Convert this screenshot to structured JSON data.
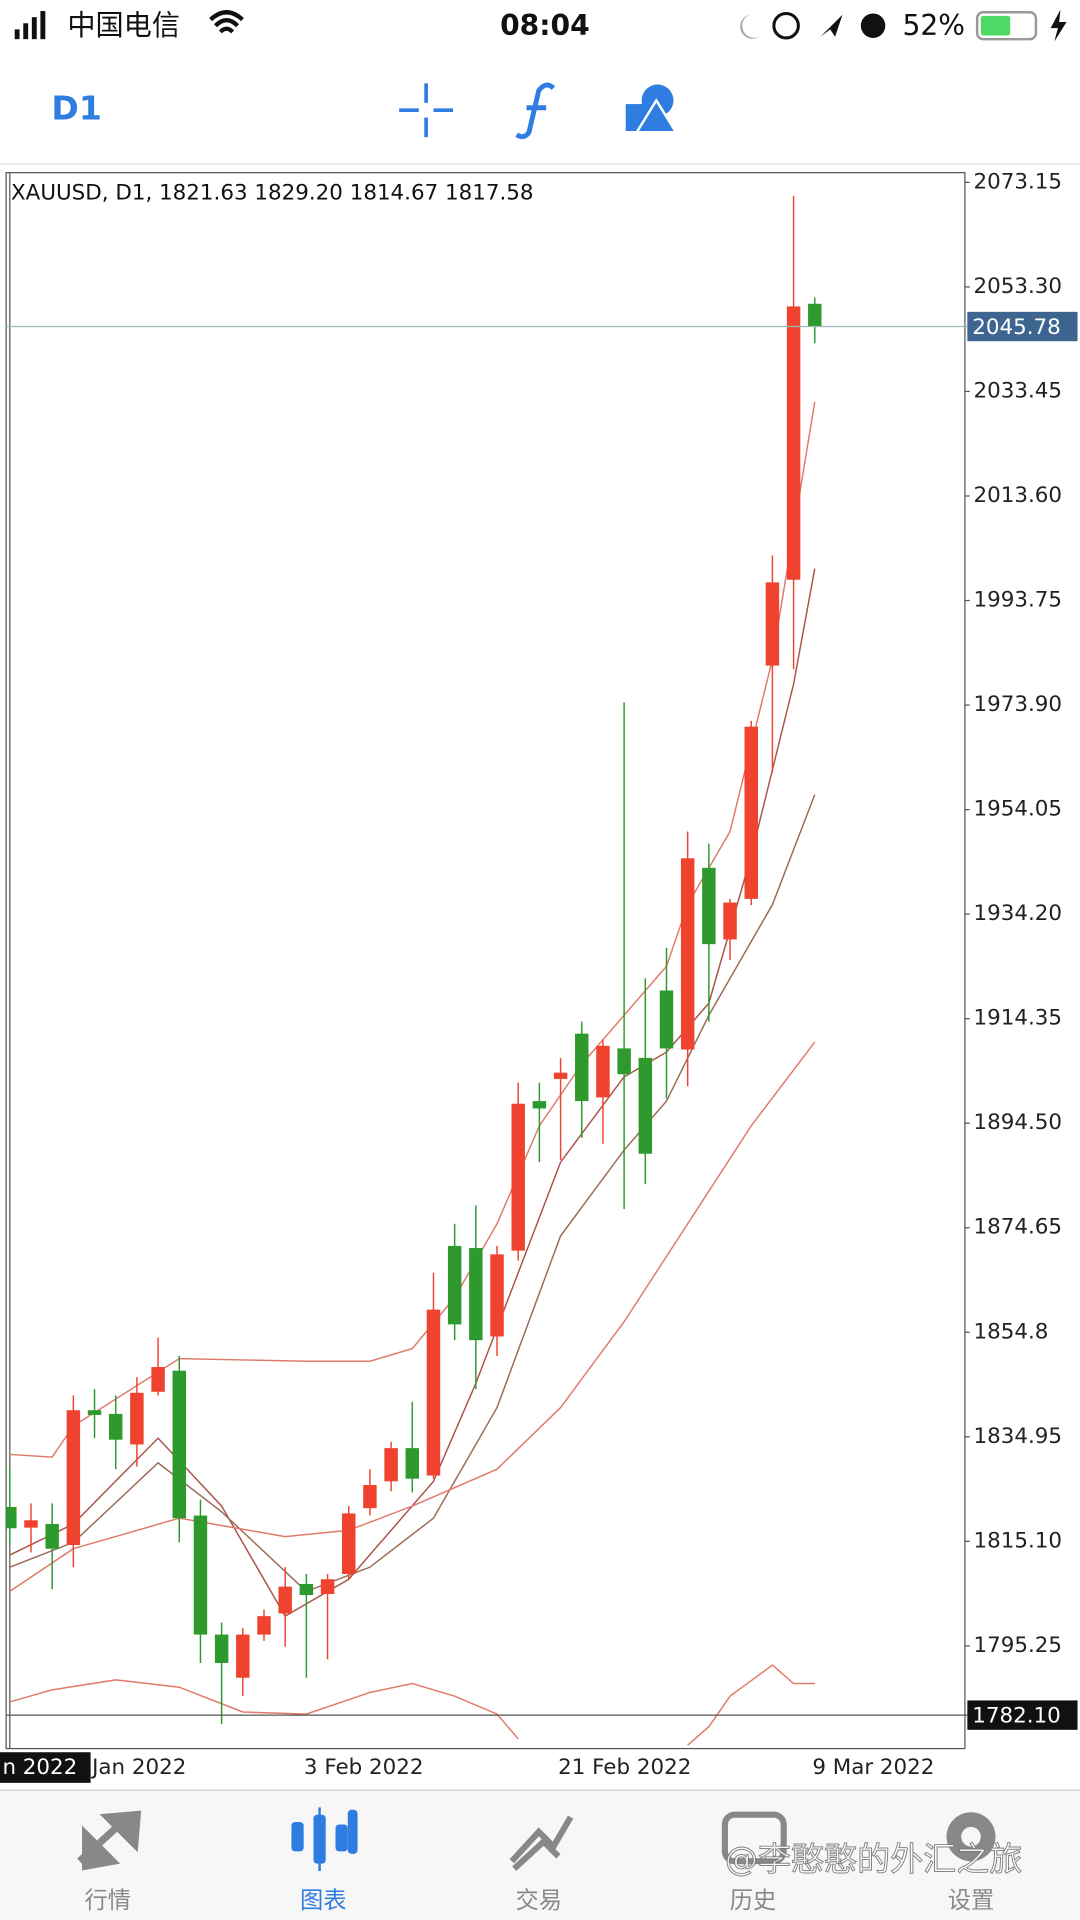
{
  "status_bar": {
    "carrier": "中国电信",
    "time": "08:04",
    "battery": "52%"
  },
  "toolbar": {
    "timeframe": "D1"
  },
  "chart_data": {
    "type": "candlestick",
    "title": "XAUUSD, D1, 1821.63 1829.20 1814.67 1817.58",
    "categories": [
      null,
      null,
      null,
      null,
      "Jan 2022",
      null,
      null,
      null,
      null,
      null,
      null,
      null,
      null,
      null,
      "3 Feb 2022",
      null,
      null,
      null,
      null,
      null,
      null,
      null,
      null,
      null,
      null,
      null,
      "21 Feb 2022",
      null,
      null,
      null,
      null,
      null,
      null,
      null,
      null,
      null,
      null,
      null,
      "9 Mar 2022"
    ],
    "crosshair_date": "n 2022",
    "open": [
      1821.63,
      1817.7,
      1818.4,
      1814.4,
      1840.0,
      1839.3,
      1833.5,
      1843.5,
      1847.5,
      1820.0,
      1797.4,
      1789.2,
      1797.4,
      1801.4,
      1807.0,
      1805.1,
      1808.9,
      1821.4,
      1826.5,
      1832.8,
      1827.6,
      1871.2,
      1870.8,
      1854.0,
      1870.3,
      1898.7,
      1902.9,
      1911.5,
      1899.4,
      1908.7,
      1906.9,
      1919.7,
      1908.5,
      1943.0,
      1929.4,
      1937.1,
      1981.4,
      1997.7,
      2050.1
    ],
    "high": [
      1829.2,
      1822.3,
      1822.3,
      1842.8,
      1844.0,
      1842.8,
      1846.3,
      1853.8,
      1850.3,
      1823.0,
      1799.7,
      1798.6,
      1802.1,
      1810.2,
      1808.9,
      1808.9,
      1821.8,
      1828.8,
      1834.0,
      1841.6,
      1866.1,
      1875.4,
      1878.9,
      1871.2,
      1902.2,
      1902.2,
      1906.9,
      1913.8,
      1910.4,
      1974.4,
      1922.0,
      1927.8,
      1949.9,
      1947.6,
      1937.1,
      1970.9,
      2002.3,
      2070.6,
      2051.3
    ],
    "low": [
      1814.67,
      1813.0,
      1806.0,
      1810.2,
      1834.7,
      1828.8,
      1829.3,
      1842.8,
      1814.9,
      1792.0,
      1780.4,
      1785.7,
      1796.2,
      1795.1,
      1789.2,
      1792.7,
      1807.9,
      1820.0,
      1824.6,
      1824.4,
      1827.0,
      1853.3,
      1844.0,
      1850.3,
      1868.4,
      1887.1,
      1887.5,
      1891.7,
      1890.6,
      1878.2,
      1882.9,
      1899.2,
      1901.5,
      1913.8,
      1925.5,
      1935.9,
      1961.1,
      1980.7,
      2042.6
    ],
    "close": [
      1817.58,
      1819.1,
      1813.7,
      1840.0,
      1839.1,
      1834.4,
      1843.3,
      1848.2,
      1819.5,
      1797.4,
      1792.0,
      1797.4,
      1800.9,
      1806.5,
      1804.9,
      1807.9,
      1820.4,
      1825.8,
      1832.8,
      1827.0,
      1859.1,
      1856.3,
      1853.3,
      1869.6,
      1898.2,
      1897.3,
      1904.1,
      1898.7,
      1909.2,
      1903.8,
      1888.7,
      1908.7,
      1944.8,
      1928.5,
      1936.4,
      1969.8,
      1997.2,
      2049.6,
      2045.78
    ],
    "up_color": "#f0432f",
    "down_color": "#2e9a2e",
    "lines": [
      {
        "color": "#e07a6a",
        "x": [
          0,
          2,
          3,
          8,
          14,
          17,
          19,
          21,
          23,
          25,
          27,
          29,
          31,
          32,
          34,
          36,
          38
        ],
        "values": [
          1831.6,
          1831.1,
          1837.0,
          1849.8,
          1849.3,
          1849.3,
          1851.7,
          1861.4,
          1875.4,
          1894.0,
          1905.7,
          1915.0,
          1924.3,
          1936.0,
          1949.9,
          1982.6,
          2031.5
        ]
      },
      {
        "color": "#a8544a",
        "x": [
          0,
          3,
          7,
          10,
          13,
          16,
          20,
          22,
          24,
          26,
          29,
          31,
          33,
          35,
          37,
          38
        ],
        "values": [
          1812.5,
          1818.4,
          1834.7,
          1821.8,
          1800.9,
          1807.9,
          1826.5,
          1845.1,
          1866.1,
          1887.1,
          1903.3,
          1908.0,
          1917.3,
          1945.3,
          1977.9,
          1999.8
        ]
      },
      {
        "color": "#9b6a55",
        "x": [
          0,
          3,
          7,
          10,
          14,
          17,
          20,
          23,
          26,
          29,
          31,
          33,
          36,
          38
        ],
        "values": [
          1810.2,
          1814.9,
          1830.0,
          1820.7,
          1805.6,
          1810.2,
          1819.5,
          1840.5,
          1873.1,
          1889.4,
          1898.7,
          1915.0,
          1936.0,
          1956.9
        ]
      },
      {
        "color": "#e07a6a",
        "x": [
          0,
          3,
          8,
          13,
          16,
          19,
          23,
          26,
          29,
          32,
          35,
          38
        ],
        "values": [
          1805.6,
          1813.7,
          1819.5,
          1816.0,
          1817.2,
          1821.8,
          1828.8,
          1840.5,
          1856.8,
          1875.4,
          1894.0,
          1909.9
        ]
      },
      {
        "color": "#e07a6a",
        "x": [
          0,
          2,
          5,
          8,
          11,
          14,
          17,
          19,
          21,
          23,
          24,
          28,
          32,
          33,
          34,
          36,
          37,
          38
        ],
        "values": [
          1784.6,
          1786.9,
          1788.8,
          1787.4,
          1782.7,
          1782.3,
          1786.4,
          1788.1,
          1785.7,
          1782.3,
          1777.6,
          null,
          1776.4,
          1779.9,
          1785.7,
          1791.6,
          1788.1,
          1788.1
        ]
      }
    ],
    "price_lines": [
      {
        "value": 2045.78,
        "color": "#3d6590",
        "line_color": "#9ab8b8"
      },
      {
        "value": {
          "value": 1782.1,
          "label": "1782.10"
        },
        "color": "#111111",
        "line_color": "#555555"
      }
    ],
    "ylim": [
      1775.75,
      2075.0
    ],
    "yticks": [
      2073.15,
      {
        "value": 2053.3,
        "label": "2053.30"
      },
      2033.45,
      {
        "value": 2013.6,
        "label": "2013.60"
      },
      1993.75,
      {
        "value": 1973.9,
        "label": "1973.90"
      },
      1954.05,
      {
        "value": 1934.2,
        "label": "1934.20"
      },
      1914.35,
      {
        "value": 1894.5,
        "label": "1894.50"
      },
      1874.65,
      1854.8,
      1834.95,
      {
        "value": 1815.1,
        "label": "1815.10"
      },
      1795.25
    ]
  },
  "tab_bar": {
    "items": [
      "行情",
      "图表",
      "交易",
      "历史",
      "设置"
    ],
    "active": 1
  },
  "watermark": "@李憨憨的外汇之旅"
}
